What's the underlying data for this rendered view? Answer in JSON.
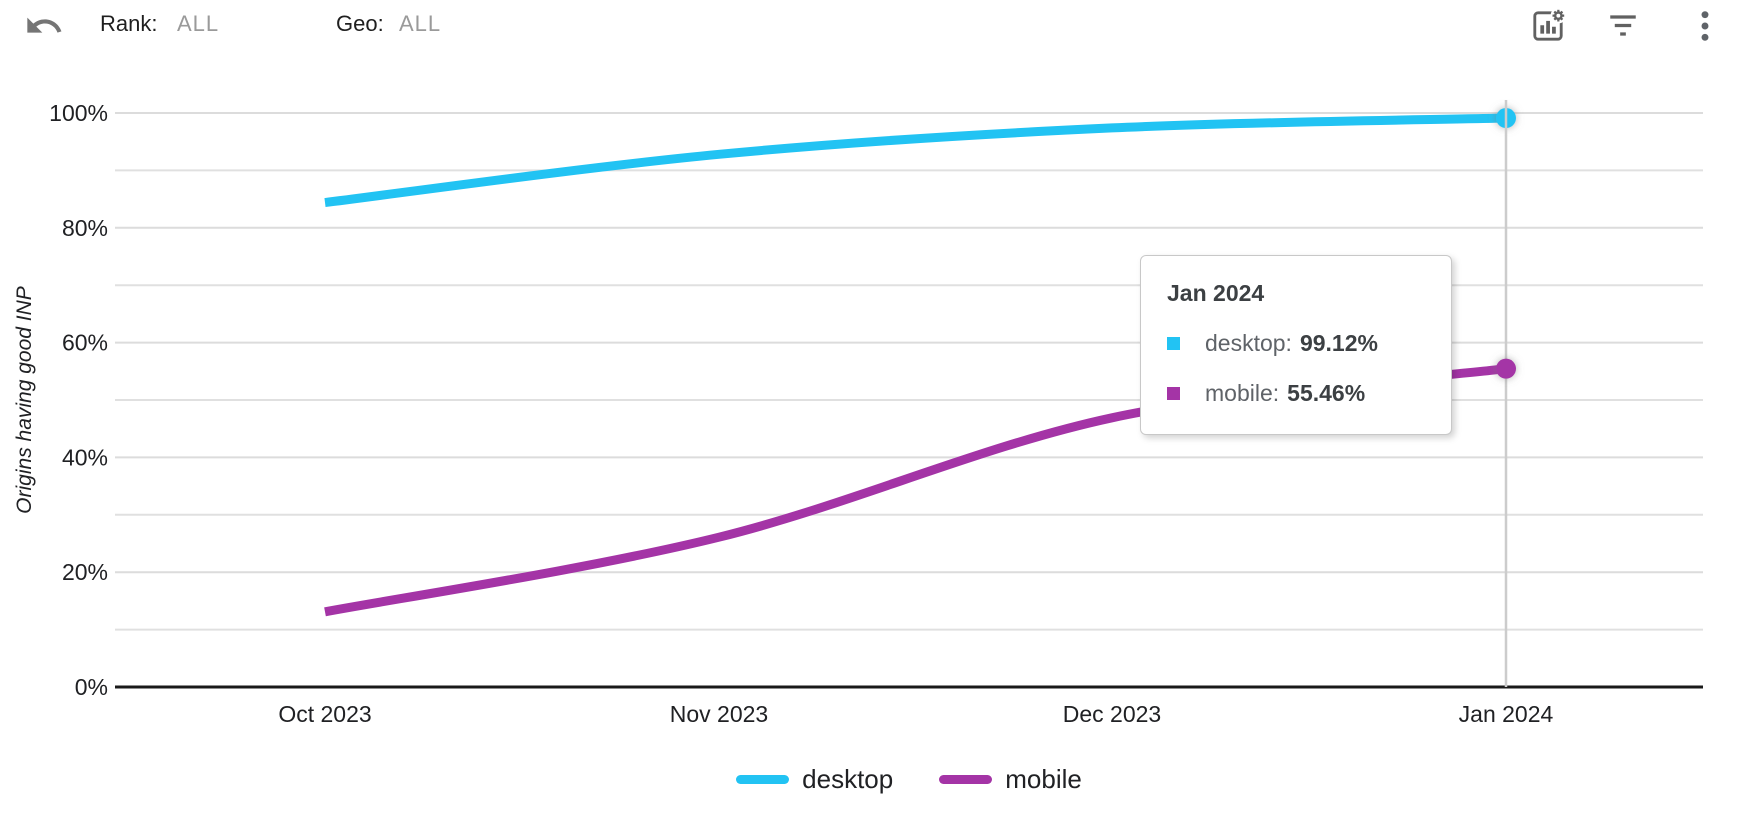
{
  "toolbar": {
    "rank_label": "Rank:",
    "rank_value": "ALL",
    "geo_label": "Geo:",
    "geo_value": "ALL"
  },
  "chart_data": {
    "type": "line",
    "title": "",
    "xlabel": "",
    "ylabel": "Origins having good INP",
    "x": [
      "Oct 2023",
      "Nov 2023",
      "Dec 2023",
      "Jan 2024"
    ],
    "series": [
      {
        "name": "desktop",
        "color": "#22c3f3",
        "values": [
          84.4,
          92.8,
          97.4,
          99.12
        ]
      },
      {
        "name": "mobile",
        "color": "#a434a6",
        "values": [
          13.1,
          26.1,
          46.9,
          55.46
        ]
      }
    ],
    "ylim": [
      0,
      100
    ],
    "yticks_labeled": [
      0,
      20,
      40,
      60,
      80,
      100
    ],
    "yticks_minor": [
      10,
      30,
      50,
      70,
      90
    ],
    "ytick_suffix": "%",
    "grid": true,
    "legend_position": "bottom",
    "highlighted_x": "Jan 2024"
  },
  "tooltip": {
    "title": "Jan 2024",
    "rows": [
      {
        "label": "desktop",
        "value": "99.12%",
        "color": "#22c3f3"
      },
      {
        "label": "mobile",
        "value": "55.46%",
        "color": "#a434a6"
      }
    ]
  },
  "legend": {
    "items": [
      {
        "label": "desktop",
        "color": "#22c3f3"
      },
      {
        "label": "mobile",
        "color": "#a434a6"
      }
    ]
  }
}
